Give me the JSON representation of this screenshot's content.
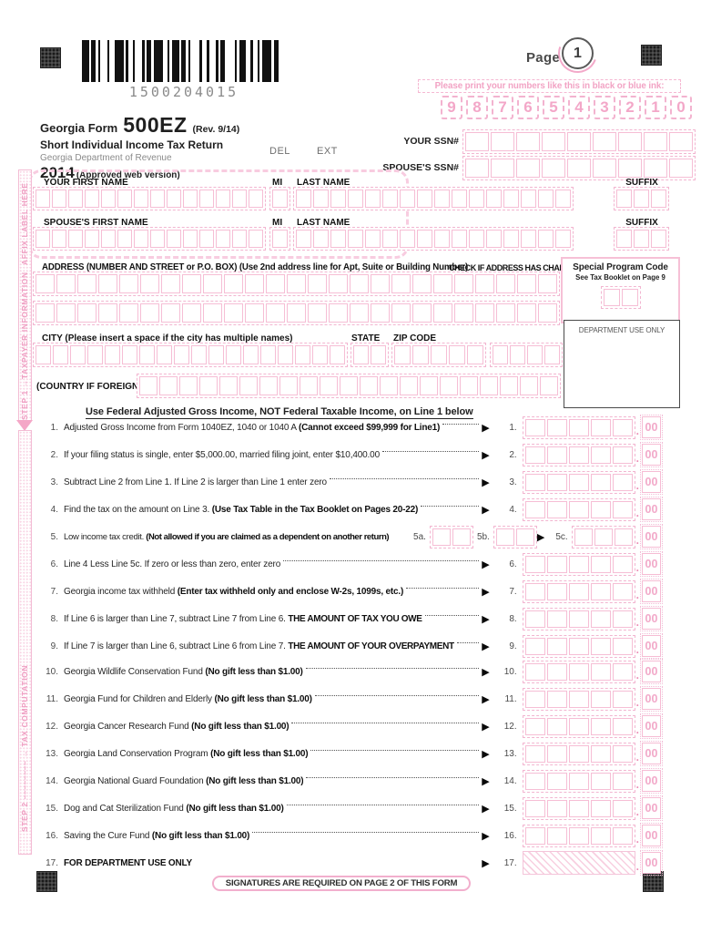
{
  "colors": {
    "accent_pink": "#f5b4d0",
    "pink_text": "#ef9cc0",
    "ink": "#1f1f1f"
  },
  "page": {
    "label": "Page",
    "number": "1"
  },
  "barcode": {
    "number": "1500204015"
  },
  "print_guide": {
    "text": "Please print your numbers like this in black or blue ink:",
    "digits": [
      "9",
      "8",
      "7",
      "6",
      "5",
      "4",
      "3",
      "2",
      "1",
      "0"
    ]
  },
  "header": {
    "form_prefix": "Georgia Form",
    "form_code": "500EZ",
    "revision": "(Rev. 9/14)",
    "subtitle": "Short Individual Income Tax Return",
    "department": "Georgia Department of Revenue",
    "year": "2014",
    "year_note": "(Approved web version)",
    "del_label": "DEL",
    "ext_label": "EXT",
    "your_ssn_label": "YOUR SSN#",
    "spouse_ssn_label": "SPOUSE'S SSN#"
  },
  "side_labels": {
    "affix": "AFFIX LABEL HERE",
    "step1": "STEP 1 ",
    "step1_arrow": "→",
    "taxpayer_info": "TAXPAYER INFORMATION",
    "step2": "STEP 2 ",
    "step2_dashes": "–––––––– ",
    "step2_arrow": "→ ",
    "tax_computation": "TAX COMPUTATION"
  },
  "name_section": {
    "your_first_name": "YOUR FIRST NAME",
    "spouse_first_name": "SPOUSE'S FIRST NAME",
    "mi": "MI",
    "last_name": "LAST NAME",
    "suffix": "SUFFIX"
  },
  "address_section": {
    "address_label": "ADDRESS (NUMBER AND STREET or P.O. BOX) (Use 2nd address line for Apt, Suite or Building Number)",
    "address_changed_label": "CHECK IF ADDRESS HAS CHANGED",
    "special_program_title": "Special Program Code",
    "special_program_note": "See Tax Booklet on Page 9",
    "department_use_label": "DEPARTMENT USE ONLY",
    "city_label": "CITY (Please insert a space if the city has multiple names)",
    "state_label": "STATE",
    "zip_label": "ZIP CODE",
    "country_label": "(COUNTRY IF FOREIGN)"
  },
  "tax_section": {
    "heading": "Use Federal Adjusted Gross Income, NOT Federal Taxable Income, on Line 1 below",
    "cents": "00",
    "arrow_icon": "▶",
    "line5_labels": {
      "a": "5a.",
      "b": "5b.",
      "c": "5c."
    },
    "lines": [
      {
        "num": "1.",
        "pre": "Adjusted Gross Income from Form 1040EZ, 1040 or 1040 A ",
        "bold": "(Cannot exceed $99,999 for Line1)"
      },
      {
        "num": "2.",
        "pre": "If your filing status is single, enter $5,000.00, married filing joint, enter $10,400.00 ",
        "bold": ""
      },
      {
        "num": "3.",
        "pre": "Subtract Line 2 from Line 1. If Line 2 is larger than Line 1 enter zero",
        "bold": ""
      },
      {
        "num": "4.",
        "pre": "Find the tax on the amount on Line 3. ",
        "bold": "(Use Tax Table in the Tax Booklet on Pages 20-22)"
      },
      {
        "num": "5.",
        "pre": "Low income tax credit. ",
        "bold": "(Not allowed if you are claimed as a dependent on another return)"
      },
      {
        "num": "6.",
        "pre": "Line 4 Less Line 5c. If zero or less than zero, enter zero",
        "bold": ""
      },
      {
        "num": "7.",
        "pre": "Georgia income tax withheld ",
        "bold": "(Enter tax withheld only and enclose W-2s, 1099s, etc.) "
      },
      {
        "num": "8.",
        "pre": "If Line 6 is larger than Line 7, subtract Line 7 from Line 6. ",
        "bold": "THE AMOUNT OF TAX YOU OWE "
      },
      {
        "num": "9.",
        "pre": "If Line 7 is larger than Line 6, subtract Line 6 from Line 7. ",
        "bold": "THE AMOUNT OF YOUR OVERPAYMENT"
      },
      {
        "num": "10.",
        "pre": "Georgia Wildlife Conservation Fund ",
        "bold": "(No gift less than $1.00)"
      },
      {
        "num": "11.",
        "pre": "Georgia Fund for Children and Elderly ",
        "bold": "(No gift less than $1.00)"
      },
      {
        "num": "12.",
        "pre": "Georgia Cancer Research Fund ",
        "bold": "(No gift less than $1.00)"
      },
      {
        "num": "13.",
        "pre": "Georgia Land Conservation Program ",
        "bold": "(No gift  less than $1.00)"
      },
      {
        "num": "14.",
        "pre": "Georgia National Guard Foundation ",
        "bold": "(No gift less than $1.00)"
      },
      {
        "num": "15.",
        "pre": "Dog and Cat Sterilization Fund ",
        "bold": "(No gift less than $1.00)"
      },
      {
        "num": "16.",
        "pre": "Saving the Cure Fund ",
        "bold": "(No gift less than $1.00)"
      },
      {
        "num": "17.",
        "pre": "",
        "bold": "FOR DEPARTMENT USE ONLY"
      }
    ]
  },
  "footer": {
    "signature_note": "SIGNATURES ARE REQUIRED ON PAGE 2 OF THIS FORM"
  }
}
